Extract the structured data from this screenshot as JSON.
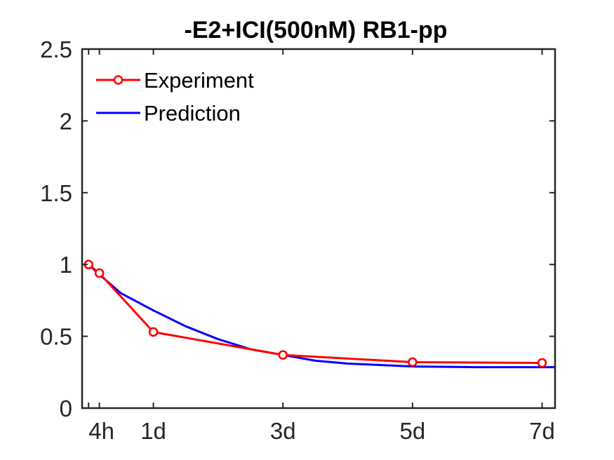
{
  "chart_data": {
    "type": "line",
    "title": "-E2+ICI(500nM) RB1-pp",
    "xlabel": "",
    "ylabel": "",
    "x_ticks": [
      {
        "value": 0.1667,
        "label": "4h"
      },
      {
        "value": 1,
        "label": "1d"
      },
      {
        "value": 3,
        "label": "3d"
      },
      {
        "value": 5,
        "label": "5d"
      },
      {
        "value": 7,
        "label": "7d"
      }
    ],
    "x_minor_ticks": [
      0,
      0.1667,
      1,
      3,
      5,
      7
    ],
    "xlim": [
      -0.1,
      7.2
    ],
    "y_ticks": [
      {
        "value": 0,
        "label": "0"
      },
      {
        "value": 0.5,
        "label": "0.5"
      },
      {
        "value": 1,
        "label": "1"
      },
      {
        "value": 1.5,
        "label": "1.5"
      },
      {
        "value": 2,
        "label": "2"
      },
      {
        "value": 2.5,
        "label": "2.5"
      }
    ],
    "ylim": [
      0,
      2.5
    ],
    "grid": false,
    "legend_position": "top-left",
    "series": [
      {
        "name": "Experiment",
        "color": "#ff0000",
        "marker": "circle",
        "x": [
          0,
          0.1667,
          1,
          3,
          5,
          7
        ],
        "y": [
          1.0,
          0.94,
          0.53,
          0.37,
          0.32,
          0.315
        ]
      },
      {
        "name": "Prediction",
        "color": "#0000ff",
        "marker": "none",
        "x": [
          0,
          0.1667,
          0.5,
          1,
          1.5,
          2,
          2.5,
          3,
          3.5,
          4,
          5,
          6,
          7.2
        ],
        "y": [
          1.0,
          0.93,
          0.8,
          0.68,
          0.57,
          0.48,
          0.41,
          0.37,
          0.33,
          0.31,
          0.29,
          0.285,
          0.285
        ]
      }
    ]
  }
}
